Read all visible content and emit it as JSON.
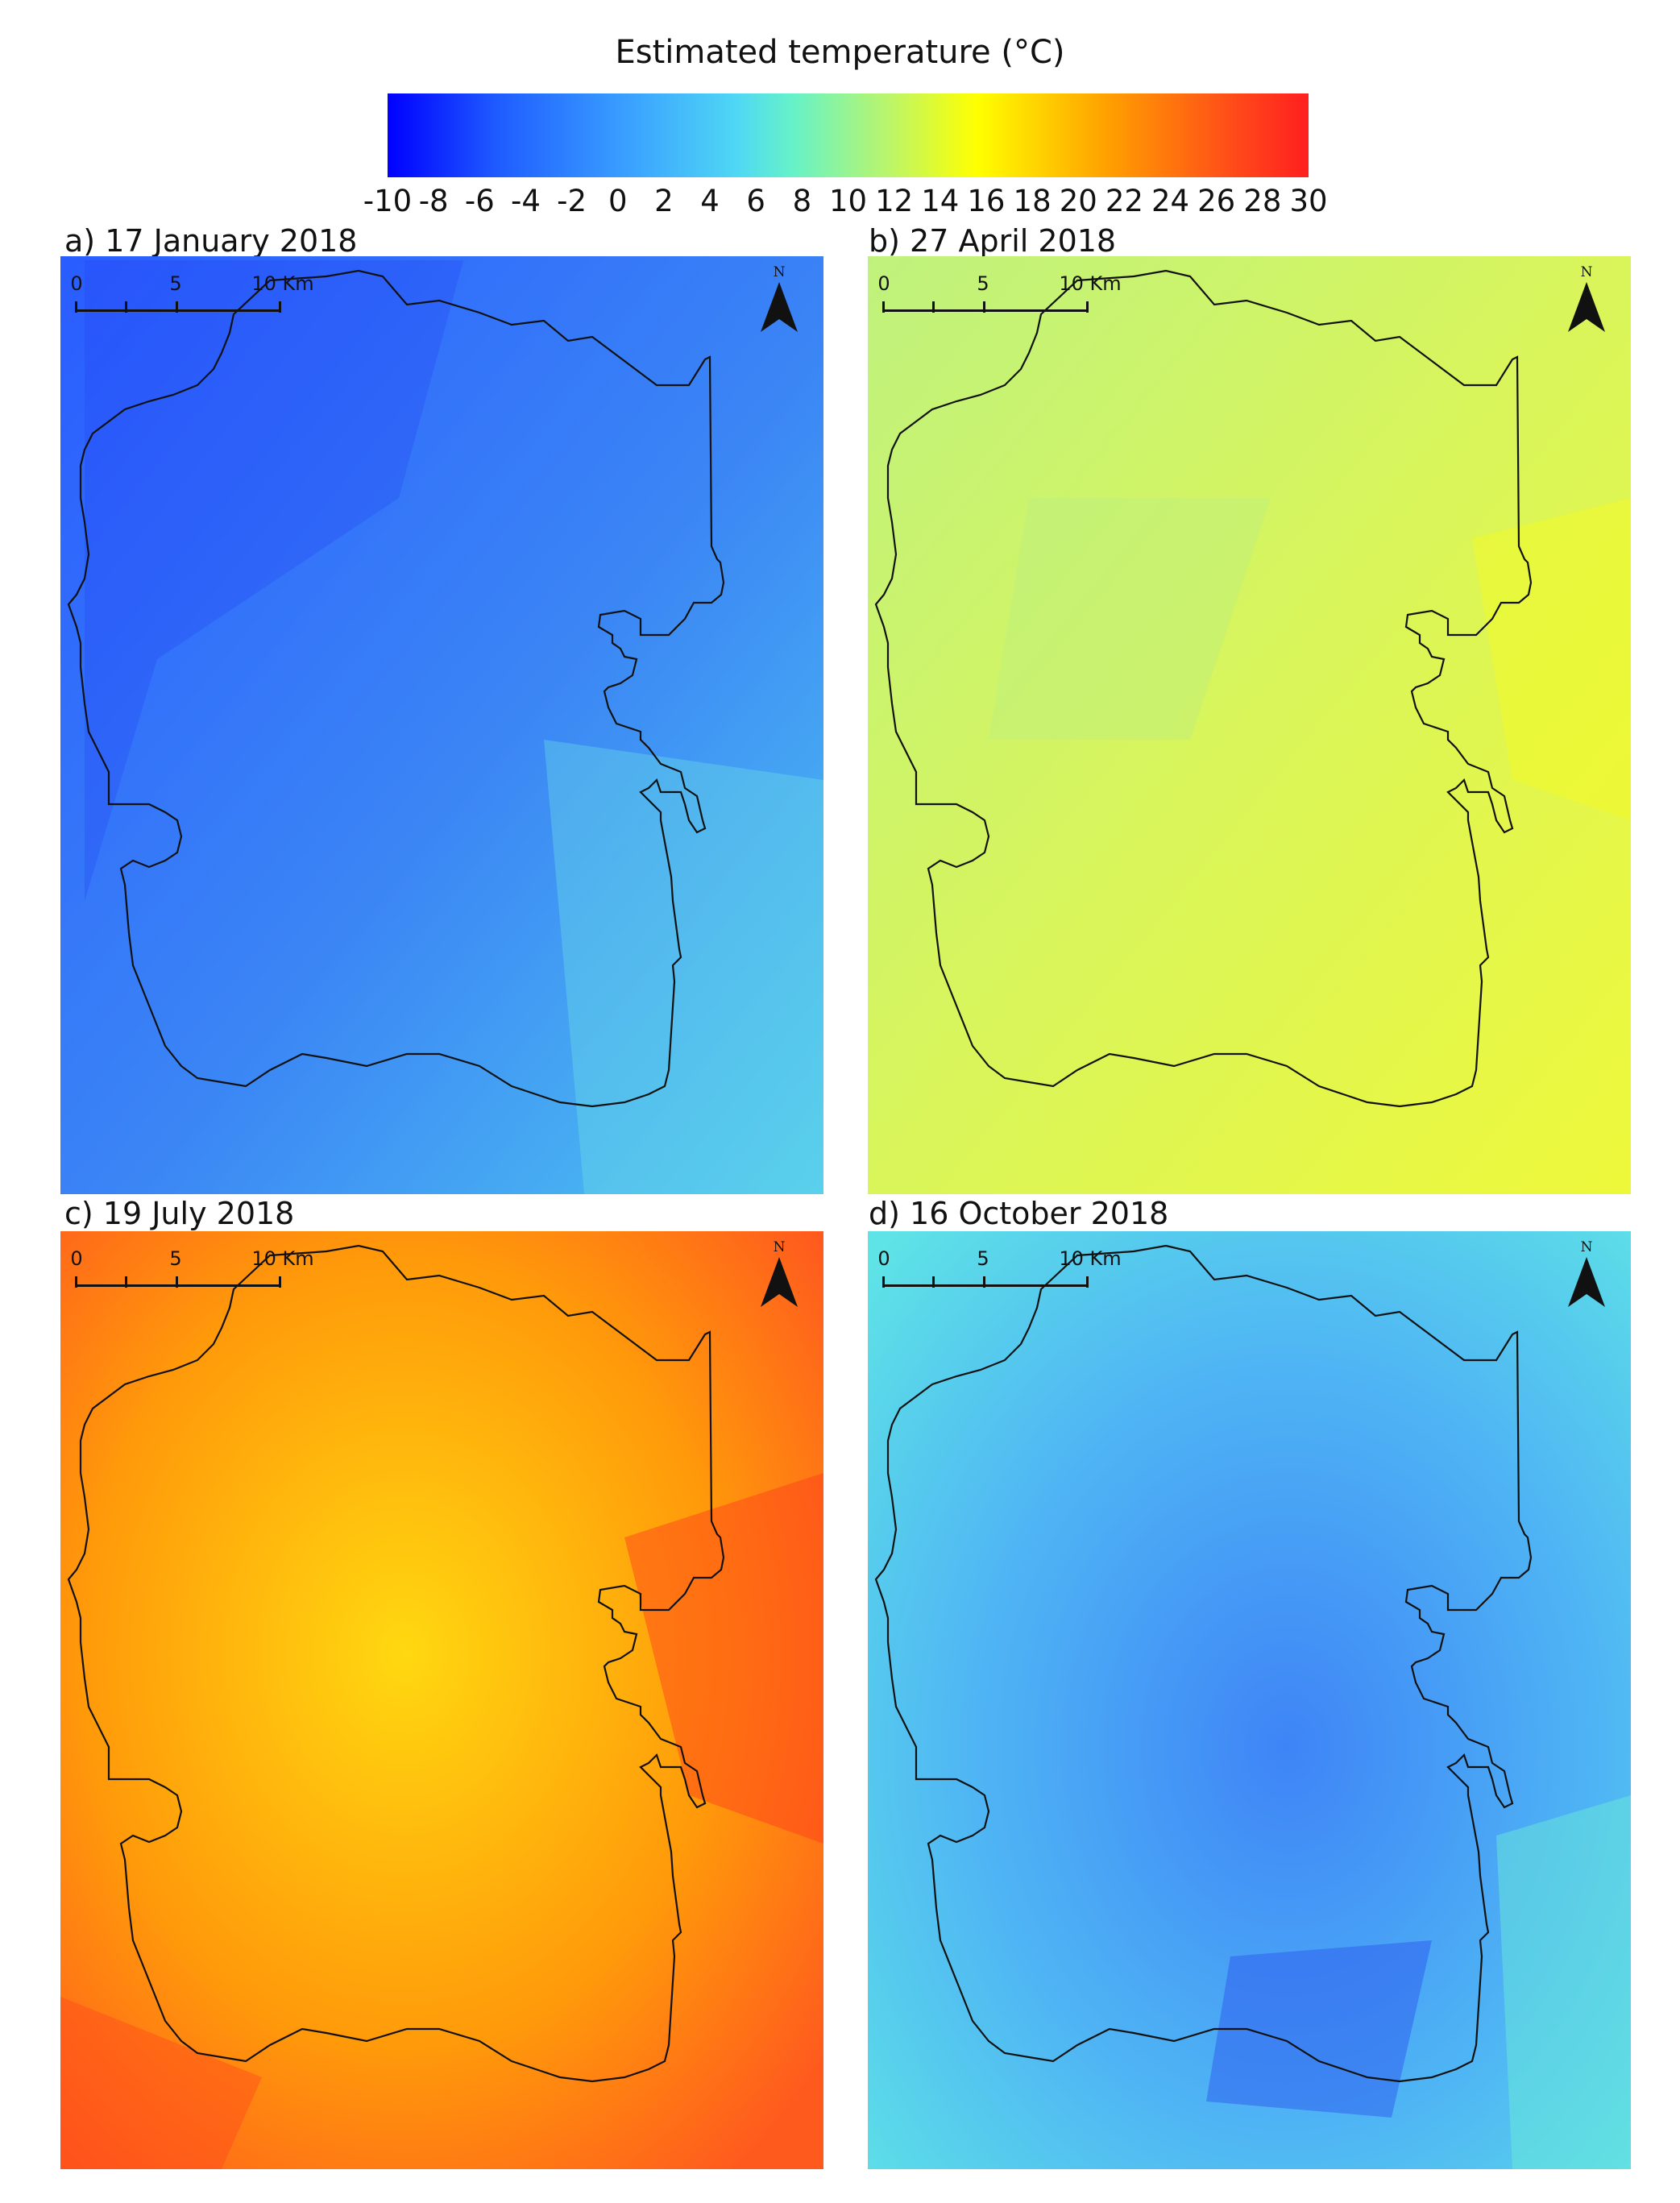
{
  "colorbar": {
    "title": "Estimated temperature (°C)",
    "ticks": [
      "-10",
      "-8",
      "-6",
      "-4",
      "-2",
      "0",
      "2",
      "4",
      "6",
      "8",
      "10",
      "12",
      "14",
      "16",
      "18",
      "20",
      "22",
      "24",
      "26",
      "28",
      "30"
    ],
    "min": -10,
    "max": 30,
    "colors": [
      "#0000ff",
      "#1f5cff",
      "#3aa0ff",
      "#4fd8f4",
      "#66f2c8",
      "#b8f56e",
      "#ffff00",
      "#ffa100",
      "#ff4a1a",
      "#ff1f1f"
    ]
  },
  "scalebar": {
    "labels": [
      "0",
      "5",
      "10 Km"
    ]
  },
  "north_arrow": {
    "label": "N"
  },
  "panels": [
    {
      "label": "a) 17 January 2018",
      "colors": [
        "#2a5cff",
        "#3b86f5",
        "#4fc6f0"
      ]
    },
    {
      "label": "b) 27 April 2018",
      "colors": [
        "#bff27d",
        "#d9f55a",
        "#eef83a"
      ]
    },
    {
      "label": "c) 19 July 2018",
      "colors": [
        "#ff5a1e",
        "#ff9a0a",
        "#ffd810"
      ]
    },
    {
      "label": "d) 16 October 2018",
      "colors": [
        "#3e84f7",
        "#4fb5f4",
        "#5ee3e6"
      ]
    }
  ]
}
